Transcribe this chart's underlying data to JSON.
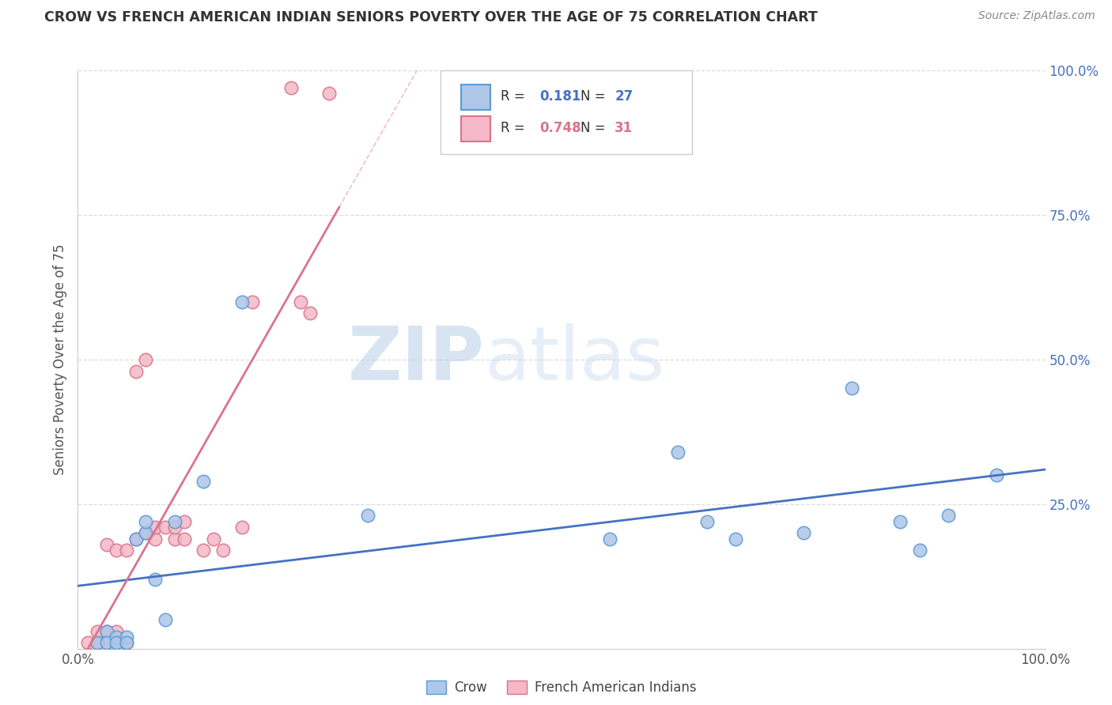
{
  "title": "CROW VS FRENCH AMERICAN INDIAN SENIORS POVERTY OVER THE AGE OF 75 CORRELATION CHART",
  "source": "Source: ZipAtlas.com",
  "ylabel_label": "Seniors Poverty Over the Age of 75",
  "watermark_zip": "ZIP",
  "watermark_atlas": "atlas",
  "crow_R": 0.181,
  "crow_N": 27,
  "fai_R": 0.748,
  "fai_N": 31,
  "crow_color": "#aec6e8",
  "crow_edge_color": "#5b9bd5",
  "fai_color": "#f4b8c8",
  "fai_edge_color": "#d9748a",
  "crow_line_color": "#4472c4",
  "fai_line_color": "#d9748a",
  "legend_R_color": "#333333",
  "legend_val_color_blue": "#4472c4",
  "legend_val_color_pink": "#d9748a",
  "crow_scatter_x": [
    0.02,
    0.03,
    0.03,
    0.04,
    0.04,
    0.04,
    0.05,
    0.05,
    0.06,
    0.07,
    0.07,
    0.08,
    0.09,
    0.1,
    0.13,
    0.17,
    0.3,
    0.55,
    0.62,
    0.65,
    0.68,
    0.75,
    0.8,
    0.85,
    0.87,
    0.9,
    0.95
  ],
  "crow_scatter_y": [
    0.01,
    0.03,
    0.01,
    0.0,
    0.02,
    0.01,
    0.02,
    0.01,
    0.19,
    0.2,
    0.22,
    0.12,
    0.05,
    0.22,
    0.29,
    0.6,
    0.23,
    0.19,
    0.34,
    0.22,
    0.19,
    0.2,
    0.45,
    0.22,
    0.17,
    0.23,
    0.3
  ],
  "fai_scatter_x": [
    0.01,
    0.02,
    0.02,
    0.03,
    0.03,
    0.03,
    0.04,
    0.04,
    0.04,
    0.05,
    0.05,
    0.06,
    0.06,
    0.07,
    0.07,
    0.08,
    0.08,
    0.09,
    0.1,
    0.1,
    0.11,
    0.11,
    0.13,
    0.14,
    0.15,
    0.17,
    0.18,
    0.22,
    0.23,
    0.24,
    0.26
  ],
  "fai_scatter_y": [
    0.01,
    0.01,
    0.03,
    0.01,
    0.03,
    0.18,
    0.01,
    0.03,
    0.17,
    0.01,
    0.17,
    0.19,
    0.48,
    0.2,
    0.5,
    0.19,
    0.21,
    0.21,
    0.19,
    0.21,
    0.19,
    0.22,
    0.17,
    0.19,
    0.17,
    0.21,
    0.6,
    0.97,
    0.6,
    0.58,
    0.96
  ],
  "background_color": "#ffffff",
  "grid_color": "#dddddd"
}
